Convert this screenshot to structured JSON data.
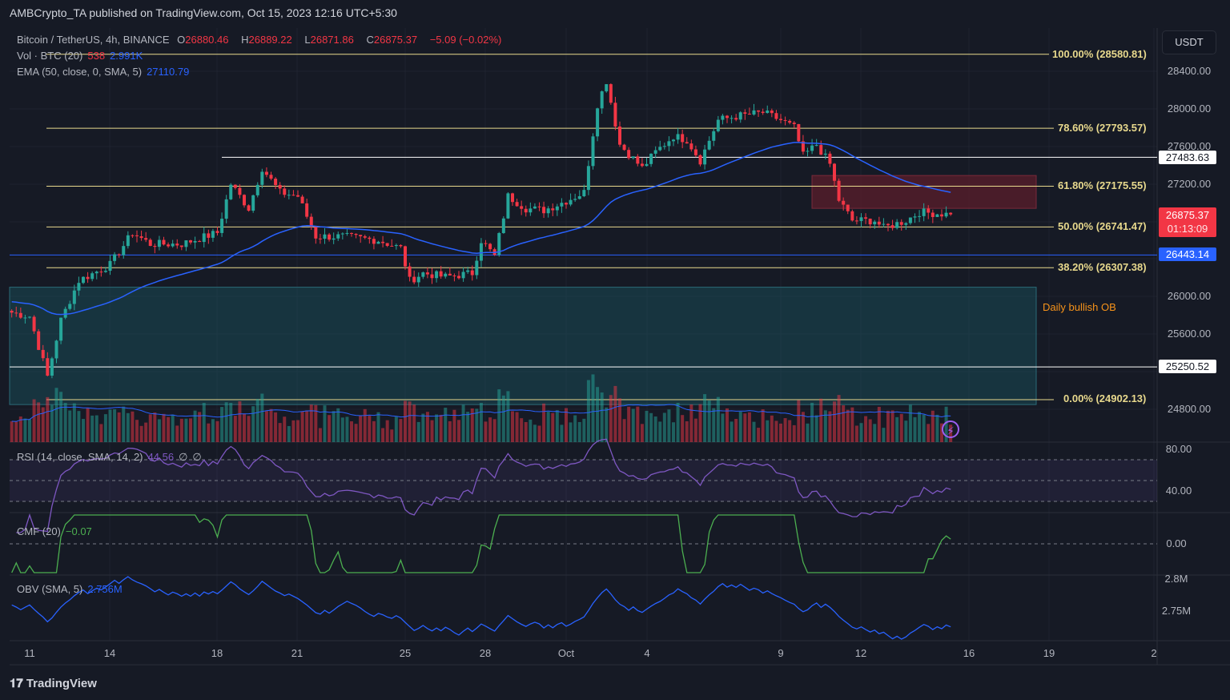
{
  "header": {
    "published": "AMBCrypto_TA published on TradingView.com, Oct 15, 2023 12:16 UTC+5:30"
  },
  "legend": {
    "symbol": "Bitcoin / TetherUS, 4h, BINANCE",
    "open_label": "O",
    "open": "26880.46",
    "high_label": "H",
    "high": "26889.22",
    "low_label": "L",
    "low": "26871.86",
    "close_label": "C",
    "close": "26875.37",
    "change": "−5.09 (−0.02%)",
    "vol_label": "Vol · BTC (20)",
    "vol_value": "538",
    "vol_ma": "2.991K",
    "ema_label": "EMA (50, close, 0, SMA, 5)",
    "ema_value": "27110.79",
    "rsi_label": "RSI (14, close, SMA, 14, 2)",
    "rsi_value": "44.56",
    "rsi_extra1": "∅",
    "rsi_extra2": "∅",
    "cmf_label": "CMF (20)",
    "cmf_value": "−0.07",
    "obv_label": "OBV (SMA, 5)",
    "obv_value": "2.756M"
  },
  "price_axis": {
    "currency": "USDT",
    "ticks": [
      "28400.00",
      "28000.00",
      "27600.00",
      "27200.00",
      "26000.00",
      "25600.00",
      "24800.00"
    ],
    "rsi_ticks": [
      "80.00",
      "40.00"
    ],
    "cmf_ticks": [
      "0.00"
    ],
    "obv_ticks": [
      "2.8M",
      "2.75M"
    ],
    "tags": {
      "level_high": "27483.63",
      "last_price": "26875.37",
      "countdown": "01:13:09",
      "level_blue": "26443.14",
      "level_low": "25250.52"
    }
  },
  "time_axis": [
    "11",
    "14",
    "18",
    "21",
    "25",
    "28",
    "Oct",
    "4",
    "9",
    "12",
    "16",
    "19",
    "2"
  ],
  "annotations": {
    "ob_label": "Daily bullish OB"
  },
  "fib_levels": [
    {
      "label": "100.00% (28580.81)",
      "price": 28580.81
    },
    {
      "label": "78.60% (27793.57)",
      "price": 27793.57
    },
    {
      "label": "61.80% (27175.55)",
      "price": 27175.55
    },
    {
      "label": "50.00% (26741.47)",
      "price": 26741.47
    },
    {
      "label": "38.20% (26307.38)",
      "price": 26307.38
    },
    {
      "label": "0.00% (24902.13)",
      "price": 24902.13
    }
  ],
  "colors": {
    "up": "#26a69a",
    "down": "#f23645",
    "fib": "#e8d98d",
    "ema": "#2962ff",
    "rsi": "#7e57c2",
    "cmf": "#4caf50",
    "obv": "#2962ff",
    "ob_zone": "#1a4a55",
    "supply_zone": "#5b1e2b"
  },
  "chart_data": {
    "type": "candlestick",
    "symbol": "BTCUSDT",
    "interval": "4h",
    "ylim": [
      24700,
      28650
    ],
    "grid": true,
    "close_path": [
      [
        "2023-09-10T08:00",
        25830
      ],
      [
        "2023-09-11T00:00",
        25790
      ],
      [
        "2023-09-11T16:00",
        25150
      ],
      [
        "2023-09-12T04:00",
        25750
      ],
      [
        "2023-09-12T20:00",
        26170
      ],
      [
        "2023-09-14T00:00",
        26340
      ],
      [
        "2023-09-14T20:00",
        26680
      ],
      [
        "2023-09-15T12:00",
        26560
      ],
      [
        "2023-09-16T16:00",
        26560
      ],
      [
        "2023-09-18T00:00",
        26680
      ],
      [
        "2023-09-18T12:00",
        27200
      ],
      [
        "2023-09-19T04:00",
        26940
      ],
      [
        "2023-09-19T16:00",
        27370
      ],
      [
        "2023-09-20T08:00",
        27110
      ],
      [
        "2023-09-21T00:00",
        27070
      ],
      [
        "2023-09-21T16:00",
        26640
      ],
      [
        "2023-09-22T16:00",
        26640
      ],
      [
        "2023-09-24T00:00",
        26600
      ],
      [
        "2023-09-24T20:00",
        26515
      ],
      [
        "2023-09-25T04:00",
        26170
      ],
      [
        "2023-09-25T16:00",
        26250
      ],
      [
        "2023-09-26T12:00",
        26210
      ],
      [
        "2023-09-27T12:00",
        26250
      ],
      [
        "2023-09-27T20:00",
        26600
      ],
      [
        "2023-09-28T08:00",
        26430
      ],
      [
        "2023-09-28T20:00",
        27070
      ],
      [
        "2023-09-29T12:00",
        26940
      ],
      [
        "2023-09-30T04:00",
        26920
      ],
      [
        "2023-10-01T00:00",
        27020
      ],
      [
        "2023-10-01T16:00",
        27110
      ],
      [
        "2023-10-02T04:00",
        28050
      ],
      [
        "2023-10-02T12:00",
        28300
      ],
      [
        "2023-10-03T00:00",
        27620
      ],
      [
        "2023-10-03T20:00",
        27370
      ],
      [
        "2023-10-04T08:00",
        27540
      ],
      [
        "2023-10-05T00:00",
        27710
      ],
      [
        "2023-10-05T12:00",
        27670
      ],
      [
        "2023-10-06T00:00",
        27450
      ],
      [
        "2023-10-06T16:00",
        27880
      ],
      [
        "2023-10-07T08:00",
        27920
      ],
      [
        "2023-10-08T08:00",
        27960
      ],
      [
        "2023-10-09T00:00",
        27880
      ],
      [
        "2023-10-09T12:00",
        27800
      ],
      [
        "2023-10-09T20:00",
        27500
      ],
      [
        "2023-10-10T08:00",
        27620
      ],
      [
        "2023-10-10T20:00",
        27410
      ],
      [
        "2023-10-11T04:00",
        27030
      ],
      [
        "2023-10-11T16:00",
        26810
      ],
      [
        "2023-10-12T12:00",
        26810
      ],
      [
        "2023-10-12T20:00",
        26730
      ],
      [
        "2023-10-13T16:00",
        26810
      ],
      [
        "2023-10-14T04:00",
        26900
      ],
      [
        "2023-10-15T08:00",
        26875.37
      ]
    ],
    "horizontal_levels": [
      27483.63,
      26443.14,
      25250.52
    ],
    "zones": [
      {
        "label": "Daily bullish OB",
        "from": 24850,
        "to": 26100
      },
      {
        "label": "",
        "from": 26940,
        "to": 27290
      }
    ]
  }
}
